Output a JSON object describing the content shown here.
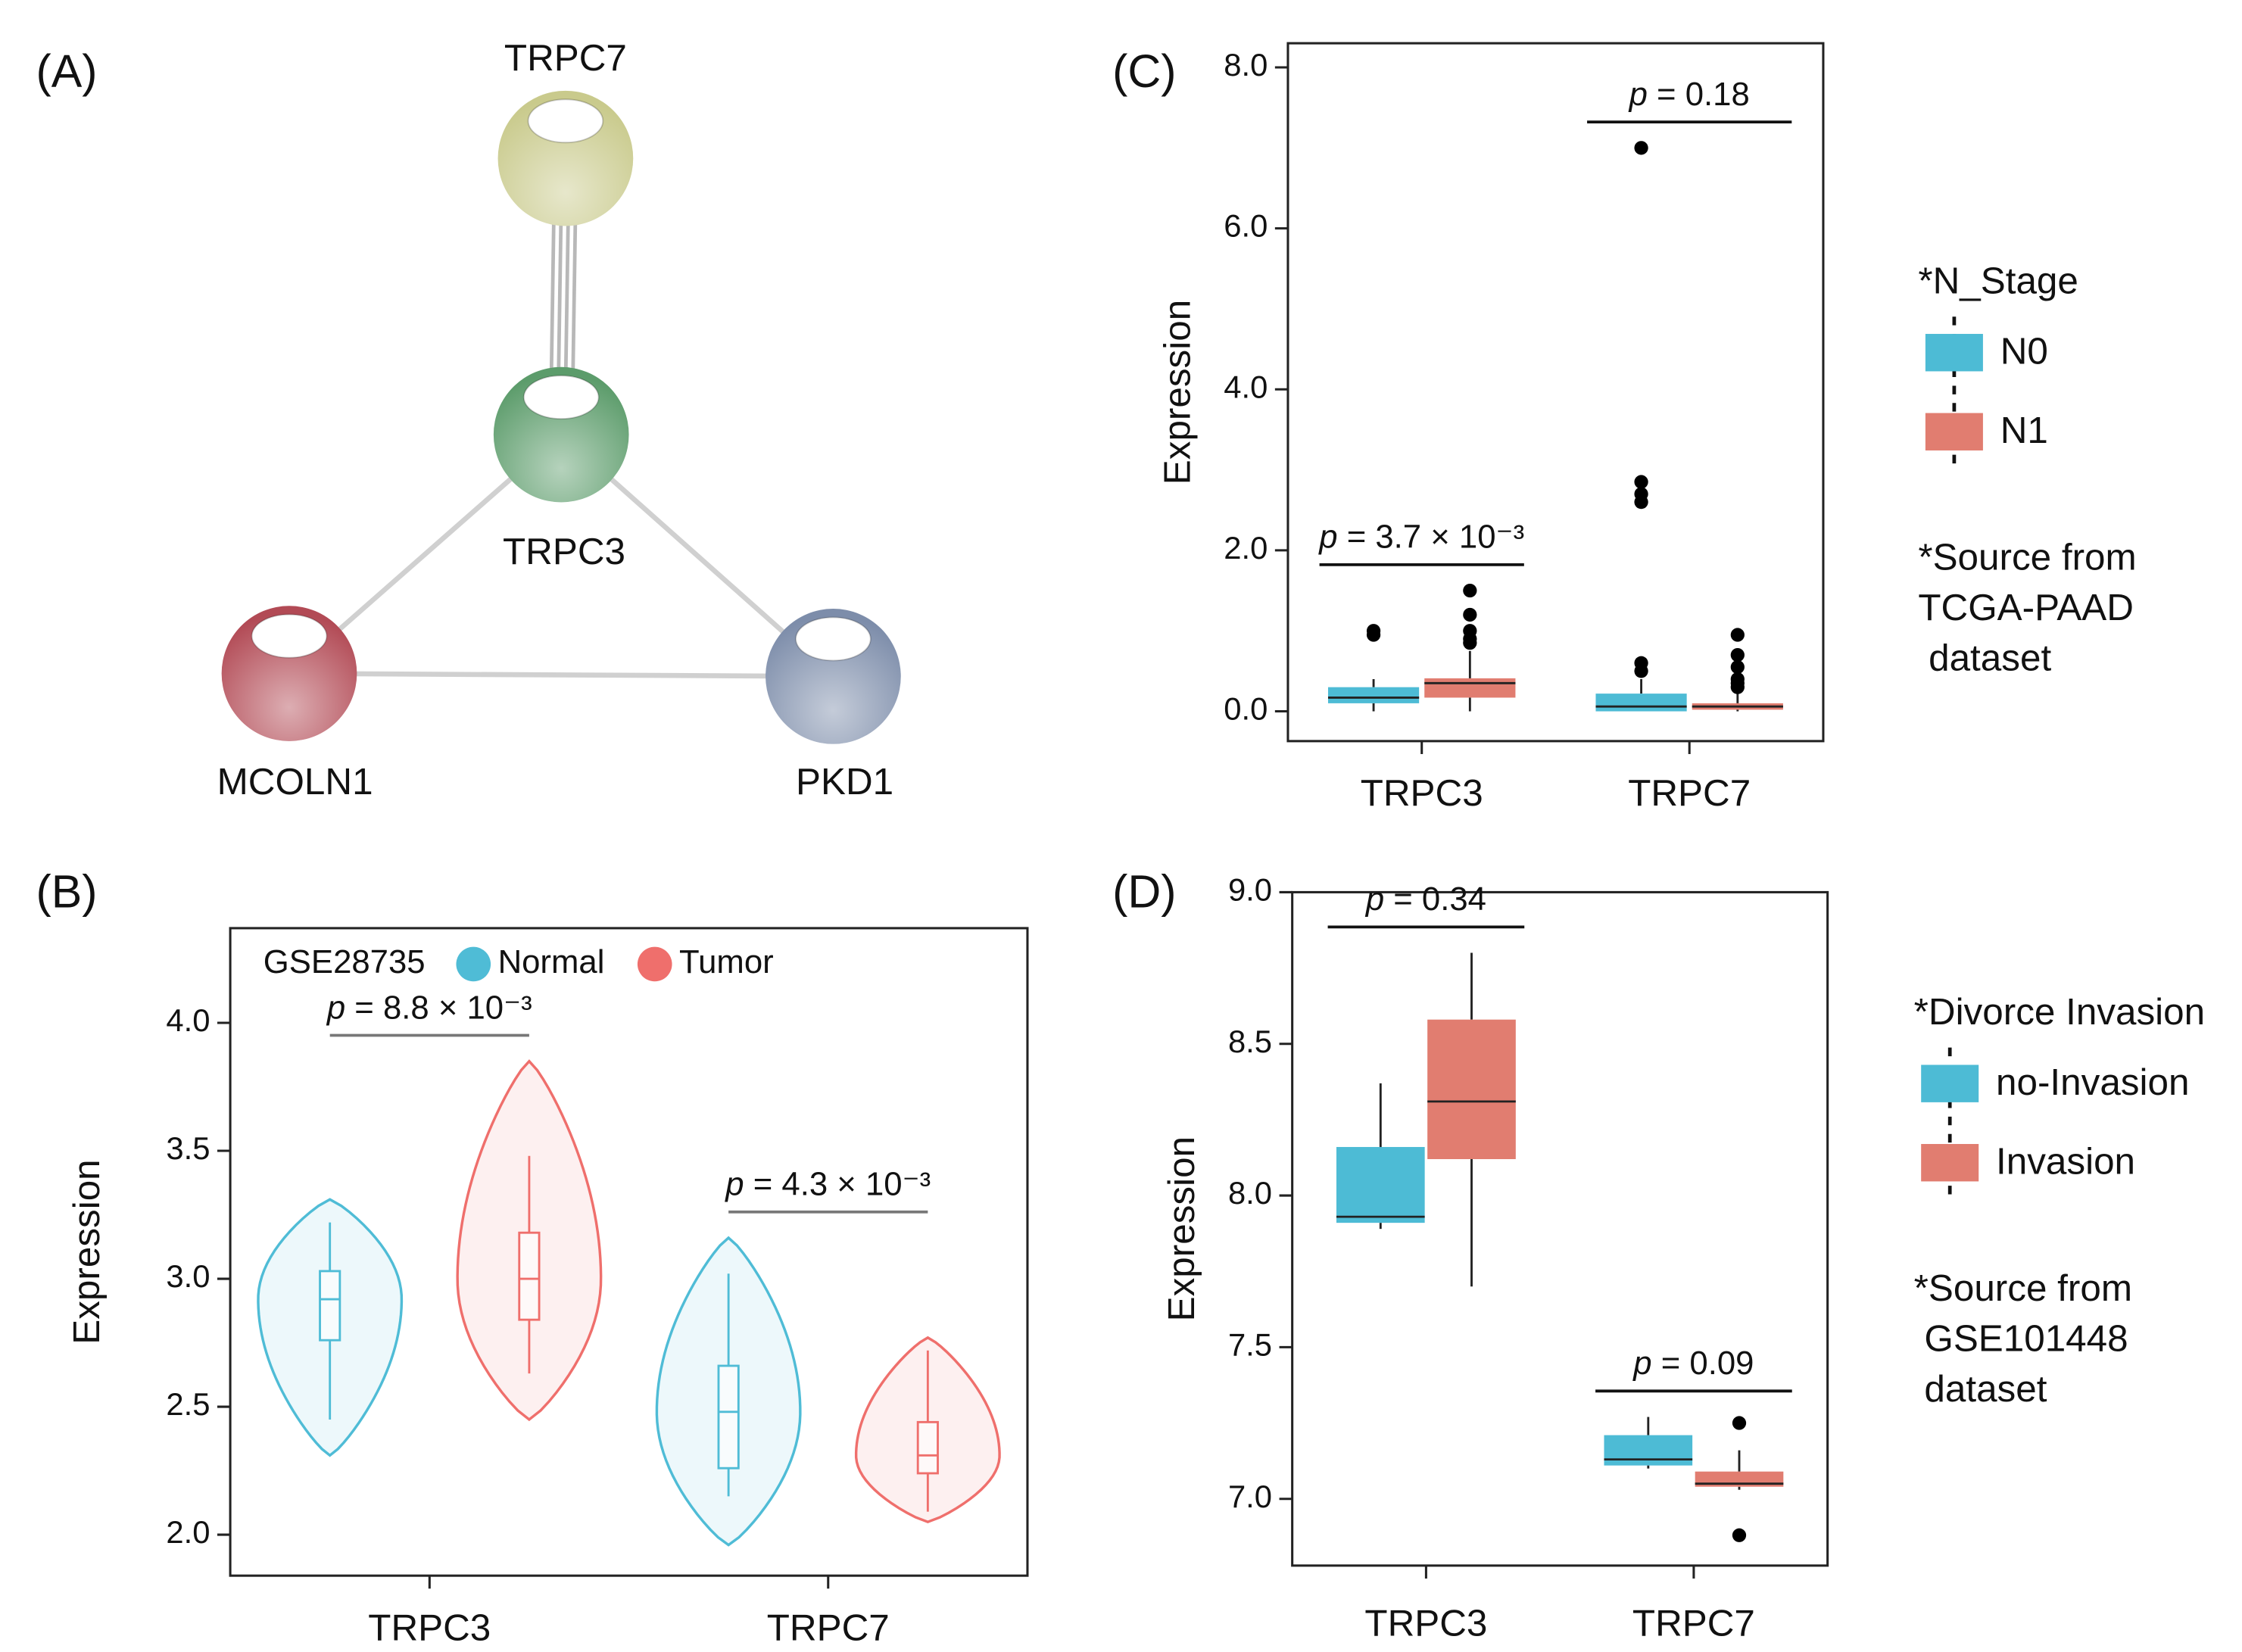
{
  "panel_labels": [
    "(A)",
    "(B)",
    "(C)",
    "(D)"
  ],
  "network": {
    "nodes": [
      {
        "label": "TRPC7",
        "color": "#c9ca8c"
      },
      {
        "label": "TRPC3",
        "color": "#5c9c6b"
      },
      {
        "label": "MCOLN1",
        "color": "#b24a55"
      },
      {
        "label": "PKD1",
        "color": "#7d8daa"
      }
    ],
    "edges": [
      {
        "source": 0,
        "target": 1,
        "strands": 4
      },
      {
        "source": 1,
        "target": 2,
        "strands": 1
      },
      {
        "source": 1,
        "target": 3,
        "strands": 1
      },
      {
        "source": 2,
        "target": 3,
        "strands": 1
      }
    ]
  },
  "chart_data": [
    {
      "type": "violin",
      "y_label": "Expression",
      "legend_title": "GSE28735",
      "categories": [
        "TRPC3",
        "TRPC7"
      ],
      "p_values": [
        "p = 8.8 × 10⁻³",
        "p = 4.3 × 10⁻³"
      ],
      "ylim": [
        1.84,
        4.37
      ],
      "yticks": [
        {
          "value": 2,
          "label": "2.0"
        },
        {
          "value": 2.5,
          "label": "2.5"
        },
        {
          "value": 3,
          "label": "3.0"
        },
        {
          "value": 3.5,
          "label": "3.5"
        },
        {
          "value": 4,
          "label": "4.0"
        }
      ],
      "series": [
        {
          "name": "Normal",
          "color": "#4fbcd6",
          "violin_min": [
            2.31,
            1.96
          ],
          "violin_max": [
            3.31,
            3.16
          ],
          "whisker_low": [
            2.45,
            2.15
          ],
          "q1": [
            2.76,
            2.26
          ],
          "median": [
            2.92,
            2.48
          ],
          "q3": [
            3.03,
            2.66
          ],
          "whisker_high": [
            3.22,
            3.02
          ]
        },
        {
          "name": "Tumor",
          "color": "#ef6f6c",
          "violin_min": [
            2.45,
            2.05
          ],
          "violin_max": [
            3.85,
            2.77
          ],
          "whisker_low": [
            2.63,
            2.09
          ],
          "q1": [
            2.84,
            2.24
          ],
          "median": [
            3.0,
            2.31
          ],
          "q3": [
            3.18,
            2.44
          ],
          "whisker_high": [
            3.48,
            2.72
          ]
        }
      ]
    },
    {
      "type": "box",
      "y_label": "Expression",
      "legend_title": "*N_Stage",
      "note": [
        "*Source from",
        "TCGA-PAAD",
        " dataset"
      ],
      "categories": [
        "TRPC3",
        "TRPC7"
      ],
      "p_values": [
        "p = 3.7 × 10⁻³",
        "p = 0.18"
      ],
      "ylim": [
        -0.37,
        8.3
      ],
      "yticks": [
        {
          "value": 0,
          "label": "0.0"
        },
        {
          "value": 2,
          "label": "2.0"
        },
        {
          "value": 4,
          "label": "4.0"
        },
        {
          "value": 6,
          "label": "6.0"
        },
        {
          "value": 8,
          "label": "8.0"
        }
      ],
      "series": [
        {
          "name": "N0",
          "color": "#4dbbd5",
          "whisker_low": [
            0.0,
            0.0
          ],
          "q1": [
            0.1,
            0.0
          ],
          "median": [
            0.17,
            0.06
          ],
          "q3": [
            0.3,
            0.22
          ],
          "whisker_high": [
            0.4,
            0.4
          ],
          "outliers": [
            [
              0.95,
              1.0
            ],
            [
              0.5,
              0.6,
              2.6,
              2.7,
              2.85,
              7.0
            ]
          ]
        },
        {
          "name": "N1",
          "color": "#e17d70",
          "whisker_low": [
            0.0,
            0.0
          ],
          "q1": [
            0.17,
            0.02
          ],
          "median": [
            0.35,
            0.06
          ],
          "q3": [
            0.41,
            0.1
          ],
          "whisker_high": [
            0.75,
            0.25
          ],
          "outliers": [
            [
              0.85,
              0.9,
              1.0,
              1.2,
              1.5
            ],
            [
              0.3,
              0.35,
              0.4,
              0.55,
              0.7,
              0.95
            ]
          ]
        }
      ]
    },
    {
      "type": "box",
      "y_label": "Expression",
      "legend_title": "*Divorce Invasion",
      "note": [
        "*Source from",
        " GSE101448",
        " dataset"
      ],
      "categories": [
        "TRPC3",
        "TRPC7"
      ],
      "p_values": [
        "p = 0.34",
        "p = 0.09"
      ],
      "ylim": [
        6.78,
        9.0
      ],
      "yticks": [
        {
          "value": 7,
          "label": "7.0"
        },
        {
          "value": 7.5,
          "label": "7.5"
        },
        {
          "value": 8,
          "label": "8.0"
        },
        {
          "value": 8.5,
          "label": "8.5"
        },
        {
          "value": 9,
          "label": "9.0"
        }
      ],
      "series": [
        {
          "name": "no-Invasion",
          "color": "#4dbbd5",
          "whisker_low": [
            7.89,
            7.1
          ],
          "q1": [
            7.91,
            7.11
          ],
          "median": [
            7.93,
            7.13
          ],
          "q3": [
            8.16,
            7.21
          ],
          "whisker_high": [
            8.37,
            7.27
          ],
          "outliers": [
            [],
            []
          ]
        },
        {
          "name": "Invasion",
          "color": "#e17d70",
          "whisker_low": [
            7.7,
            7.03
          ],
          "q1": [
            8.12,
            7.04
          ],
          "median": [
            8.31,
            7.05
          ],
          "q3": [
            8.58,
            7.09
          ],
          "whisker_high": [
            8.8,
            7.16
          ],
          "outliers": [
            [],
            [
              7.25,
              6.88
            ]
          ]
        }
      ]
    }
  ]
}
